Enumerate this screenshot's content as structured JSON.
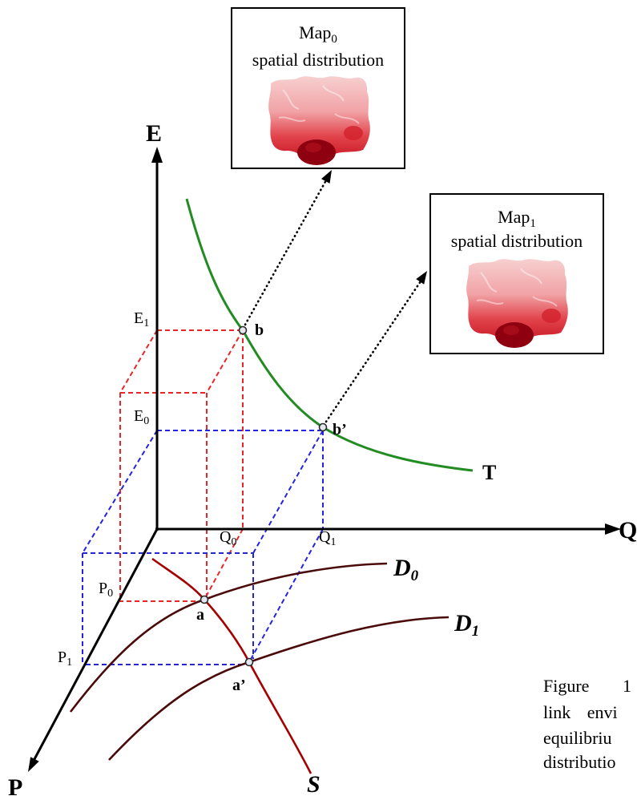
{
  "axes": {
    "e": "E",
    "q": "Q",
    "p": "P"
  },
  "maps": [
    {
      "name": "Map",
      "index": "0",
      "caption": "spatial distribution"
    },
    {
      "name": "Map",
      "index": "1",
      "caption": "spatial distribution"
    }
  ],
  "levels": {
    "e1": {
      "symbol": "E",
      "index": "1"
    },
    "e0": {
      "symbol": "E",
      "index": "0"
    },
    "q0": {
      "symbol": "Q",
      "index": "0"
    },
    "q1": {
      "symbol": "Q",
      "index": "1"
    },
    "p0": {
      "symbol": "P",
      "index": "0"
    },
    "p1": {
      "symbol": "P",
      "index": "1"
    }
  },
  "points": {
    "b": "b",
    "b_prime": "b’",
    "a": "a",
    "a_prime": "a’"
  },
  "curves": {
    "t": "T",
    "d0": {
      "symbol": "D",
      "index": "0"
    },
    "d1": {
      "symbol": "D",
      "index": "1"
    },
    "s": "S"
  },
  "caption_lines": [
    "Figure 1",
    "link envi",
    "equilibriu",
    "distributio"
  ],
  "colors": {
    "t": "#228b22",
    "s": "#a50000",
    "d": "#4b0a0a",
    "guide_e1": "#e8262a",
    "guide_e0": "#2323e0"
  }
}
